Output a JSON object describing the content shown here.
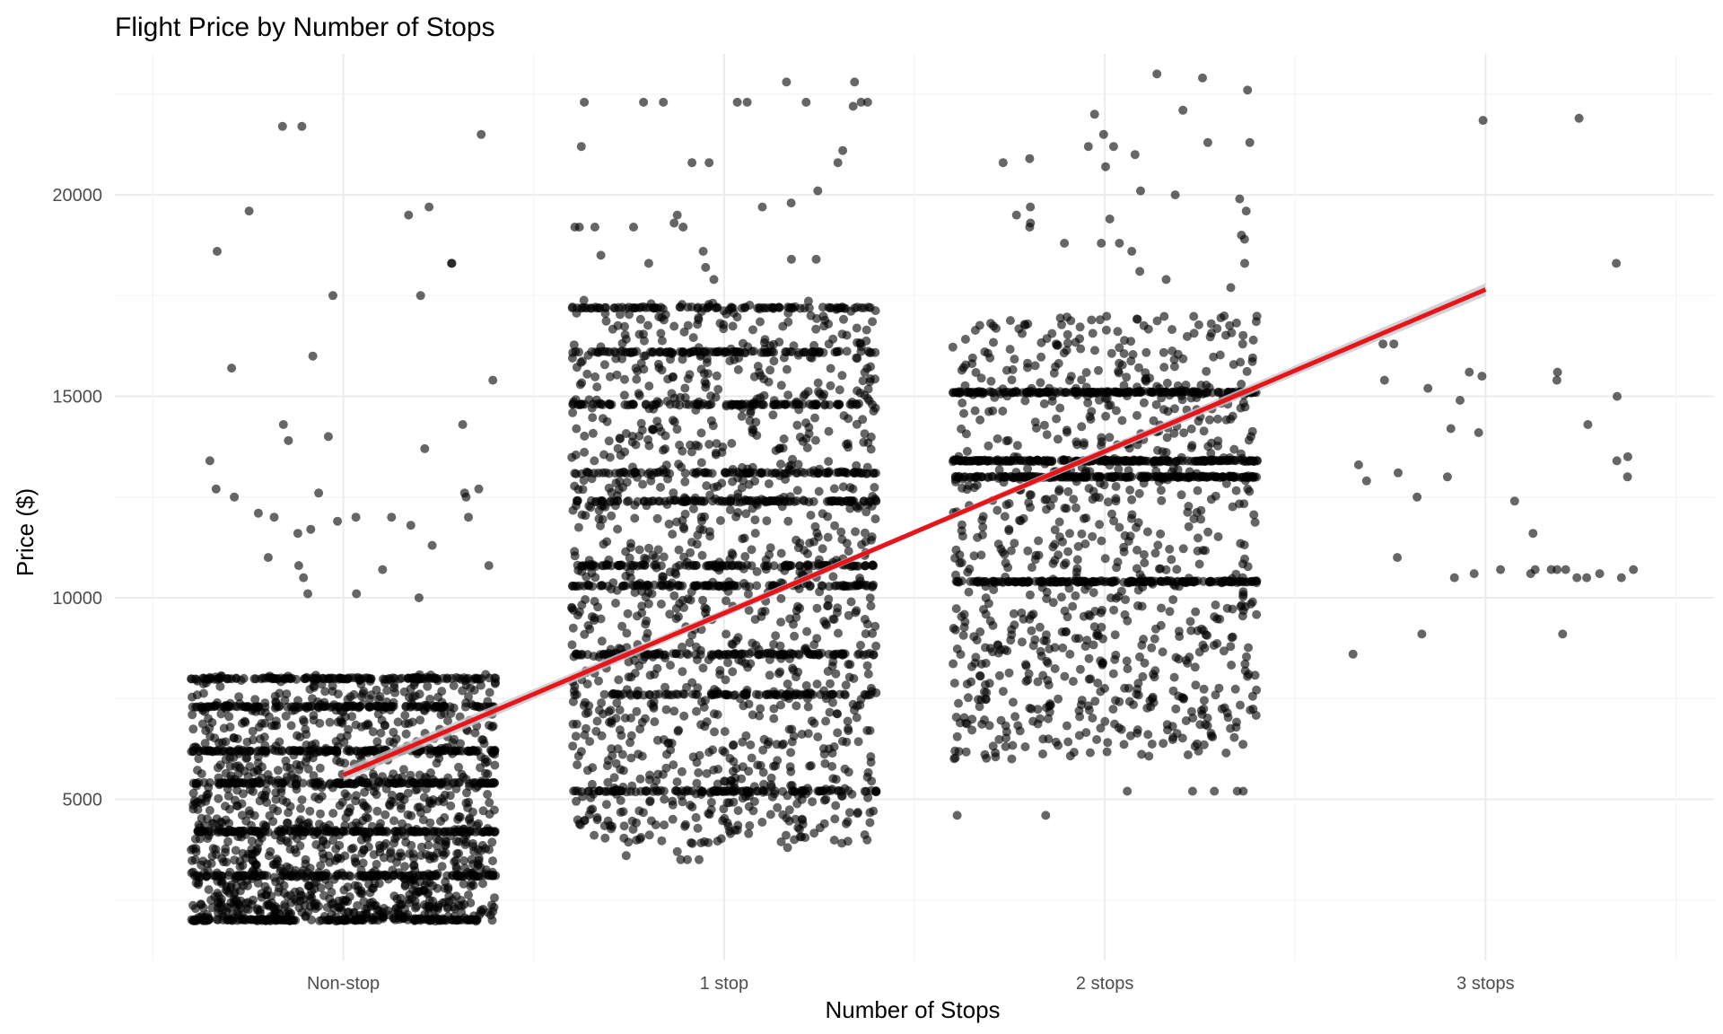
{
  "chart_data": {
    "type": "scatter",
    "title": "Flight Price by Number of Stops",
    "xlabel": "Number of Stops",
    "ylabel": "Price ($)",
    "categories": [
      "Non-stop",
      "1 stop",
      "2 stops",
      "3 stops"
    ],
    "x_tick_labels": [
      "Non-stop",
      "1 stop",
      "2 stops",
      "3 stops"
    ],
    "y_ticks": [
      5000,
      10000,
      15000,
      20000
    ],
    "y_tick_labels": [
      "5000",
      "10000",
      "15000",
      "20000"
    ],
    "ylim": [
      1000,
      23500
    ],
    "grid": true,
    "jitter_width": 0.4,
    "point_color": "#000000",
    "point_opacity": 0.6,
    "series": [
      {
        "category": "Non-stop",
        "approx_count": 2600,
        "min": 1700,
        "max": 21800,
        "dense_range": [
          2000,
          8100
        ],
        "band_levels": [
          2000,
          3100,
          4200,
          5400,
          6200,
          7300,
          8000
        ],
        "outliers": [
          19700,
          19500,
          18600,
          18300,
          18300,
          17500,
          17500,
          16000,
          15700,
          15400,
          14300,
          14300,
          14000,
          13900,
          13700,
          13400,
          12700,
          12700,
          12600,
          12600,
          12500,
          12500,
          12100,
          12000,
          12000,
          12000,
          12000,
          11900,
          11800,
          11700,
          11600,
          11300,
          11000,
          10800,
          10800,
          10700,
          10500,
          10100,
          10100,
          10000,
          21700,
          21500,
          21700,
          19600
        ]
      },
      {
        "category": "1 stop",
        "approx_count": 5200,
        "min": 3400,
        "max": 22800,
        "dense_range": [
          3900,
          17400
        ],
        "band_levels": [
          5200,
          7600,
          8600,
          10300,
          10800,
          12400,
          13100,
          14800,
          16100,
          17200
        ],
        "outliers": [
          22800,
          22800,
          22300,
          22300,
          22300,
          22300,
          22300,
          22300,
          22300,
          22300,
          22200,
          21200,
          21100,
          20800,
          20800,
          20800,
          20100,
          19800,
          19700,
          19500,
          19300,
          19200,
          19200,
          19200,
          19200,
          19200,
          18600,
          18500,
          18400,
          18400,
          18300,
          18200,
          17900,
          3600,
          3500,
          3500,
          3500,
          3700,
          3800
        ]
      },
      {
        "category": "2 stops",
        "approx_count": 1700,
        "min": 4600,
        "max": 23000,
        "dense_range": [
          6000,
          17000
        ],
        "band_levels": [
          10400,
          13000,
          13400,
          15100
        ],
        "outliers": [
          23000,
          22600,
          22900,
          22100,
          22000,
          21500,
          21300,
          21300,
          21200,
          21200,
          21000,
          20900,
          20800,
          20700,
          20100,
          20000,
          19900,
          19700,
          19600,
          19500,
          19400,
          19300,
          19200,
          19000,
          18900,
          18800,
          18800,
          18800,
          18600,
          18300,
          18100,
          17900,
          17700,
          4600,
          4600,
          5200,
          5200,
          5200,
          5200,
          5200
        ]
      },
      {
        "category": "3 stops",
        "approx_count": 45,
        "min": 8600,
        "max": 21900,
        "points": [
          21900,
          21850,
          18300,
          16300,
          16300,
          15600,
          15600,
          15500,
          15400,
          15400,
          15200,
          15000,
          14900,
          14300,
          14200,
          14100,
          13500,
          13400,
          13300,
          13100,
          13000,
          13000,
          12900,
          12500,
          12400,
          11600,
          11000,
          10700,
          10700,
          10700,
          10700,
          10700,
          10700,
          10600,
          10600,
          10600,
          10500,
          10500,
          10500,
          10500,
          9100,
          9100,
          8600
        ]
      }
    ],
    "trend_line": {
      "color": "#e8141c",
      "start": {
        "category": "Non-stop",
        "y": 5600
      },
      "end": {
        "category": "3 stops",
        "y": 17650
      },
      "confidence_band": true,
      "band_color": "#c8c8c8"
    }
  }
}
